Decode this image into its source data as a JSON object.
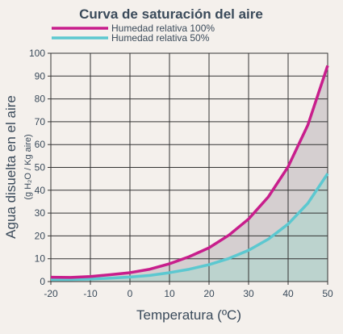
{
  "chart_data": {
    "type": "area",
    "title": "Curva de saturación del aire",
    "xlabel": "Temperatura (ºC)",
    "ylabel": "Agua disuelta en el aire",
    "ylabel_sub": "(g H₂O / Kg aire)",
    "xlim": [
      -20,
      50
    ],
    "ylim": [
      0,
      100
    ],
    "x_ticks": [
      -20,
      -10,
      0,
      10,
      20,
      30,
      40,
      50
    ],
    "y_ticks": [
      0,
      10,
      20,
      30,
      40,
      50,
      60,
      70,
      80,
      90,
      100
    ],
    "x_tick_labels": [
      "-20",
      "-10",
      "0",
      "10",
      "20",
      "30",
      "40",
      "50"
    ],
    "y_tick_labels": [
      "0",
      "10",
      "20",
      "30",
      "40",
      "50",
      "60",
      "70",
      "80",
      "90",
      "100"
    ],
    "grid": true,
    "legend_position": "top-left",
    "x": [
      -20,
      -15,
      -10,
      -5,
      0,
      5,
      10,
      15,
      20,
      25,
      30,
      35,
      40,
      45,
      50
    ],
    "series": [
      {
        "name": "Humedad relativa 100%",
        "color": "#c81e8c",
        "fill": "#d5cfd0",
        "values": [
          1.9,
          1.8,
          2.2,
          3.0,
          3.9,
          5.4,
          7.8,
          10.9,
          14.8,
          20.3,
          27.4,
          37.1,
          50.3,
          68.6,
          94.6
        ]
      },
      {
        "name": "Humedad relativa 50%",
        "color": "#5cc8d0",
        "fill": "#bcd3ce",
        "values": [
          0.9,
          0.9,
          1.1,
          1.5,
          2.0,
          2.7,
          3.9,
          5.4,
          7.4,
          10.1,
          13.7,
          18.6,
          25.2,
          34.3,
          47.3
        ]
      }
    ]
  }
}
